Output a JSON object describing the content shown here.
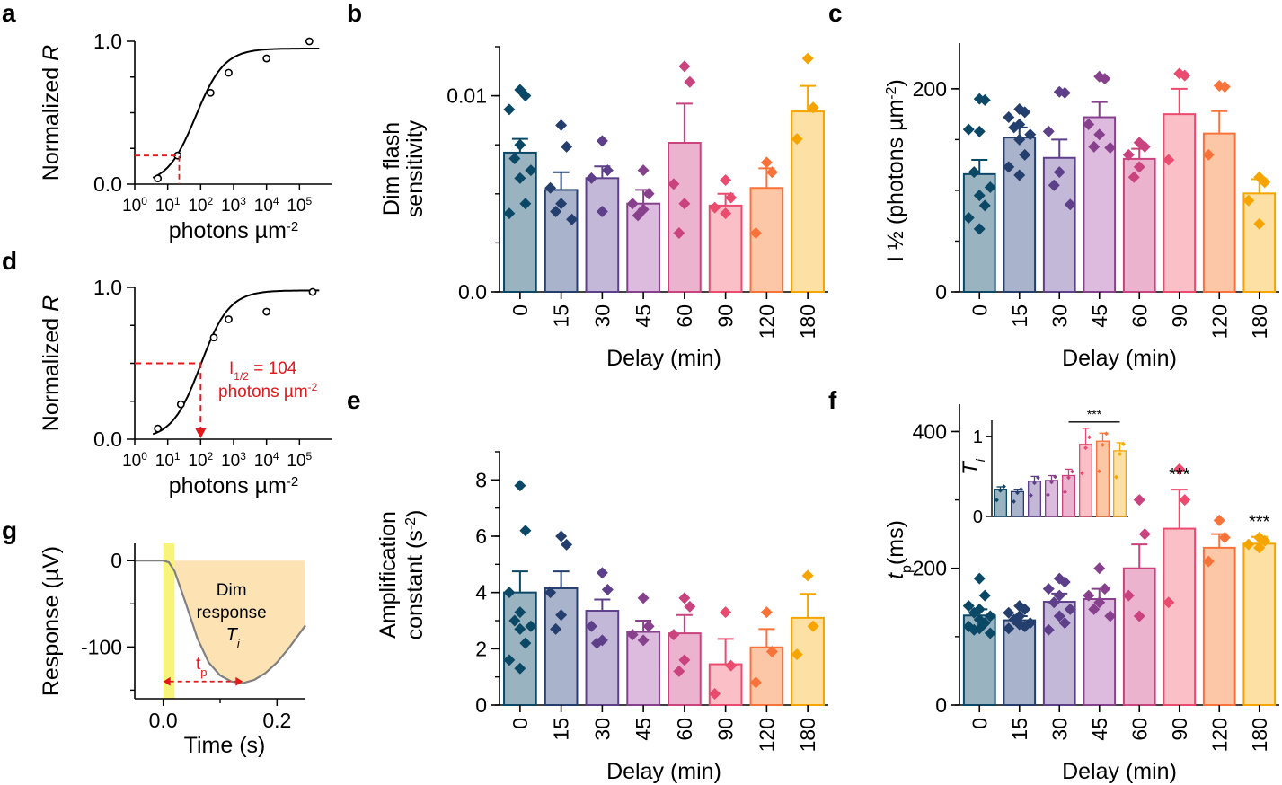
{
  "colors": [
    "#0b4866",
    "#243f6e",
    "#5d3f8a",
    "#87418c",
    "#c9437e",
    "#ea4b6e",
    "#f77339",
    "#f6a500"
  ],
  "fills": [
    "#9ab3c1",
    "#aab3cc",
    "#c4b8d9",
    "#dcbbdf",
    "#ecb3cf",
    "#fbbfc8",
    "#fcc7a6",
    "#fde0a3"
  ],
  "panels": {
    "a": {
      "label": "a"
    },
    "b": {
      "label": "b"
    },
    "c": {
      "label": "c"
    },
    "d": {
      "label": "d"
    },
    "e": {
      "label": "e"
    },
    "f": {
      "label": "f"
    },
    "g": {
      "label": "g"
    }
  },
  "chart_data": [
    {
      "id": "a",
      "type": "scatter",
      "title": "",
      "ylabel_text": "Normalized ",
      "ylabel_italic": "R",
      "xlabel_text": "photons µm",
      "xlabel_sup": "-2",
      "x_scale": "log10",
      "xlim": [
        0,
        6
      ],
      "ylim": [
        0,
        1
      ],
      "x_ticks": [
        {
          "base": "10",
          "exp": "0"
        },
        {
          "base": "10",
          "exp": "1"
        },
        {
          "base": "10",
          "exp": "2"
        },
        {
          "base": "10",
          "exp": "3"
        },
        {
          "base": "10",
          "exp": "4"
        },
        {
          "base": "10",
          "exp": "5"
        }
      ],
      "y_tick_labels": [
        "0.0",
        "1.0"
      ],
      "points_log10x": [
        0.7,
        1.3,
        2.3,
        2.85,
        4.0,
        5.3
      ],
      "points_y": [
        0.04,
        0.2,
        0.64,
        0.78,
        0.88,
        1.0
      ],
      "fit": {
        "type": "hill",
        "ymax": 0.95,
        "log_half": 1.85,
        "n": 1.0
      },
      "dashed_marker": {
        "log10x": 1.35,
        "y": 0.2
      }
    },
    {
      "id": "d",
      "type": "scatter",
      "title": "",
      "ylabel_text": "Normalized ",
      "ylabel_italic": "R",
      "xlabel_text": "photons µm",
      "xlabel_sup": "-2",
      "x_scale": "log10",
      "xlim": [
        0,
        6
      ],
      "ylim": [
        0,
        1
      ],
      "x_ticks": [
        {
          "base": "10",
          "exp": "0"
        },
        {
          "base": "10",
          "exp": "1"
        },
        {
          "base": "10",
          "exp": "2"
        },
        {
          "base": "10",
          "exp": "3"
        },
        {
          "base": "10",
          "exp": "4"
        },
        {
          "base": "10",
          "exp": "5"
        }
      ],
      "y_tick_labels": [
        "0.0",
        "1.0"
      ],
      "points_log10x": [
        0.7,
        1.4,
        2.4,
        2.85,
        4.0,
        5.4
      ],
      "points_y": [
        0.07,
        0.23,
        0.67,
        0.79,
        0.84,
        0.97
      ],
      "fit": {
        "type": "hill",
        "ymax": 0.98,
        "log_half": 2.0,
        "n": 1.0
      },
      "annotation": {
        "line1_main": "I",
        "line1_sub": "1/2",
        "line1_rest": " = 104",
        "line2": "photons µm",
        "line2_sup": "-2",
        "log10x": 2.0,
        "y": 0.5
      }
    },
    {
      "id": "b",
      "type": "bar",
      "xlabel": "Delay (min)",
      "ylabel_lines": [
        "Dim flash",
        "sensitivity"
      ],
      "categories": [
        "0",
        "15",
        "30",
        "45",
        "60",
        "90",
        "120",
        "180"
      ],
      "ylim": [
        0,
        0.0125
      ],
      "y_ticks": [
        0,
        0.01
      ],
      "y_tick_labels": [
        "0.0",
        "0.01"
      ],
      "minor_step": 0.0025,
      "values": [
        0.0071,
        0.0052,
        0.0058,
        0.0045,
        0.0076,
        0.0044,
        0.0053,
        0.0092
      ],
      "errors": [
        0.0007,
        0.0009,
        0.0006,
        0.0007,
        0.002,
        0.0006,
        0.001,
        0.0013
      ],
      "points": [
        [
          0.0103,
          0.01,
          0.0093,
          0.0075,
          0.0068,
          0.0062,
          0.0058,
          0.0045,
          0.004
        ],
        [
          0.0085,
          0.0074,
          0.0053,
          0.0045,
          0.0041,
          0.0037
        ],
        [
          0.0077,
          0.0062,
          0.0058,
          0.0041
        ],
        [
          0.0062,
          0.005,
          0.0045,
          0.0042,
          0.0039
        ],
        [
          0.0115,
          0.0107,
          0.0055,
          0.0045,
          0.003
        ],
        [
          0.0057,
          0.0048,
          0.0043,
          0.004
        ],
        [
          0.0066,
          0.0061,
          0.003
        ],
        [
          0.0119,
          0.0094,
          0.0078
        ]
      ]
    },
    {
      "id": "c",
      "type": "bar",
      "xlabel": "Delay (min)",
      "ylabel_text": "I ½ (photons µm",
      "ylabel_sup": "-2",
      "ylabel_end": ")",
      "categories": [
        "0",
        "15",
        "30",
        "45",
        "60",
        "90",
        "120",
        "180"
      ],
      "ylim": [
        0,
        245
      ],
      "y_ticks": [
        0,
        200
      ],
      "y_tick_labels": [
        "0",
        "200"
      ],
      "minor_step": 50,
      "values": [
        116,
        152,
        132,
        172,
        131,
        175,
        156,
        97
      ],
      "errors": [
        14,
        10,
        18,
        15,
        10,
        25,
        22,
        14
      ],
      "points": [
        [
          190,
          189,
          160,
          158,
          118,
          103,
          95,
          85,
          73,
          62
        ],
        [
          180,
          177,
          172,
          165,
          162,
          155,
          150,
          135,
          123,
          115
        ],
        [
          197,
          196,
          158,
          118,
          105,
          86
        ],
        [
          212,
          210,
          165,
          155,
          143,
          142
        ],
        [
          147,
          143,
          135,
          123,
          113
        ],
        [
          215,
          213,
          130
        ],
        [
          203,
          202,
          135
        ],
        [
          113,
          108,
          90,
          67
        ]
      ]
    },
    {
      "id": "e",
      "type": "bar",
      "xlabel": "Delay (min)",
      "ylabel_text": "Amplification",
      "ylabel2_text": "constant (s",
      "ylabel2_sup": "-2",
      "ylabel2_end": ")",
      "categories": [
        "0",
        "15",
        "30",
        "45",
        "60",
        "90",
        "120",
        "180"
      ],
      "ylim": [
        0,
        9
      ],
      "y_ticks": [
        0,
        2,
        4,
        6,
        8
      ],
      "y_tick_labels": [
        "0",
        "2",
        "4",
        "6",
        "8"
      ],
      "minor_step": 1,
      "values": [
        4.0,
        4.15,
        3.35,
        2.6,
        2.55,
        1.45,
        2.05,
        3.1
      ],
      "errors": [
        0.75,
        0.6,
        0.4,
        0.4,
        0.65,
        0.9,
        0.65,
        0.85
      ],
      "points": [
        [
          7.8,
          6.2,
          4.0,
          3.3,
          3.0,
          2.8,
          2.7,
          2.2,
          1.6,
          1.3
        ],
        [
          6.0,
          5.7,
          4.0,
          3.2,
          2.7
        ],
        [
          4.7,
          4.1,
          2.8,
          2.3,
          2.2
        ],
        [
          3.8,
          2.8,
          2.5,
          2.3
        ],
        [
          3.8,
          3.5,
          2.5,
          1.6,
          1.2
        ],
        [
          3.3,
          1.4,
          0.4
        ],
        [
          3.3,
          1.9,
          0.8
        ],
        [
          4.6,
          2.8,
          1.8
        ]
      ]
    },
    {
      "id": "f",
      "type": "bar",
      "xlabel": "Delay (min)",
      "ylabel_italic": "t",
      "ylabel_sub": "p",
      "ylabel_rest": "(ms)",
      "categories": [
        "0",
        "15",
        "30",
        "45",
        "60",
        "90",
        "120",
        "180"
      ],
      "ylim": [
        0,
        440
      ],
      "y_ticks": [
        0,
        200,
        400
      ],
      "y_tick_labels": [
        "0",
        "200",
        "400"
      ],
      "minor_step": 100,
      "values": [
        131,
        124,
        151,
        155,
        200,
        258,
        230,
        236
      ],
      "errors": [
        9,
        6,
        12,
        15,
        35,
        57,
        20,
        10
      ],
      "points": [
        [
          185,
          160,
          145,
          140,
          135,
          130,
          125,
          120,
          115,
          112,
          110,
          105
        ],
        [
          145,
          140,
          135,
          130,
          125,
          120,
          118,
          115,
          112
        ],
        [
          185,
          180,
          170,
          160,
          150,
          140,
          130,
          120,
          110
        ],
        [
          200,
          170,
          160,
          150,
          140,
          130
        ],
        [
          300,
          250,
          160,
          130
        ],
        [
          345,
          300,
          150
        ],
        [
          270,
          245,
          210
        ],
        [
          245,
          240,
          235,
          230
        ]
      ],
      "significance": [
        "",
        "",
        "",
        "",
        "",
        "***",
        "",
        "***"
      ],
      "inset": {
        "ylabel_italic": "T",
        "ylabel_sub": "i",
        "ylim": [
          0,
          1.2
        ],
        "y_ticks": [
          0,
          1
        ],
        "y_tick_labels": [
          "0",
          "1"
        ],
        "values": [
          0.34,
          0.31,
          0.44,
          0.45,
          0.51,
          0.9,
          0.94,
          0.82
        ],
        "errors": [
          0.03,
          0.03,
          0.06,
          0.06,
          0.08,
          0.2,
          0.1,
          0.1
        ],
        "bracket_label": "***"
      }
    },
    {
      "id": "g",
      "type": "line",
      "xlabel": "Time (s)",
      "ylabel": "Response (µV)",
      "xlim": [
        -0.05,
        0.25
      ],
      "ylim": [
        -160,
        20
      ],
      "x_ticks": [
        0,
        0.2
      ],
      "x_tick_labels": [
        "0.0",
        "0.2"
      ],
      "y_ticks": [
        0,
        -100
      ],
      "y_tick_labels": [
        "0",
        "-100"
      ],
      "flash_window": [
        0,
        0.02
      ],
      "curve_t": [
        -0.05,
        0.0,
        0.01,
        0.02,
        0.04,
        0.06,
        0.08,
        0.1,
        0.12,
        0.14,
        0.16,
        0.18,
        0.2,
        0.22,
        0.25
      ],
      "curve_v": [
        0,
        0,
        -2,
        -12,
        -50,
        -90,
        -118,
        -133,
        -140,
        -142,
        -138,
        -130,
        -118,
        -102,
        -75
      ],
      "peak_t": 0.14,
      "shade_label_lines": [
        "Dim",
        "response"
      ],
      "shade_symbol": "T",
      "shade_symbol_sub": "i",
      "tp_label": "t",
      "tp_sub": "p"
    }
  ]
}
